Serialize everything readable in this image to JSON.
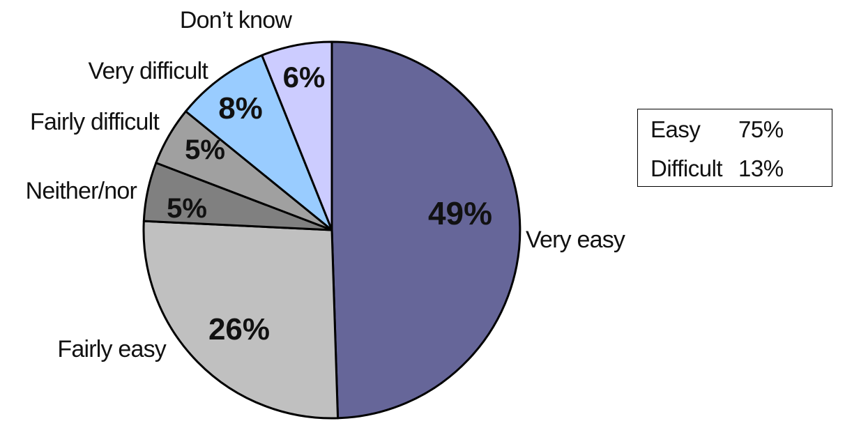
{
  "chart_data": {
    "type": "pie",
    "start_angle_deg": 0,
    "direction": "clockwise",
    "slices": [
      {
        "label": "Very easy",
        "value": 49,
        "display": "49%",
        "color": "#666699"
      },
      {
        "label": "Fairly easy",
        "value": 26,
        "display": "26%",
        "color": "#c0c0c0"
      },
      {
        "label": "Neither/nor",
        "value": 5,
        "display": "5%",
        "color": "#808080"
      },
      {
        "label": "Fairly difficult",
        "value": 5,
        "display": "5%",
        "color": "#a0a0a0"
      },
      {
        "label": "Very difficult",
        "value": 8,
        "display": "8%",
        "color": "#99ccff"
      },
      {
        "label": "Don’t know",
        "value": 6,
        "display": "6%",
        "color": "#ccccff"
      }
    ]
  },
  "summary": {
    "rows": [
      {
        "label": "Easy",
        "value": "75%"
      },
      {
        "label": "Difficult",
        "value": "13%"
      }
    ]
  }
}
